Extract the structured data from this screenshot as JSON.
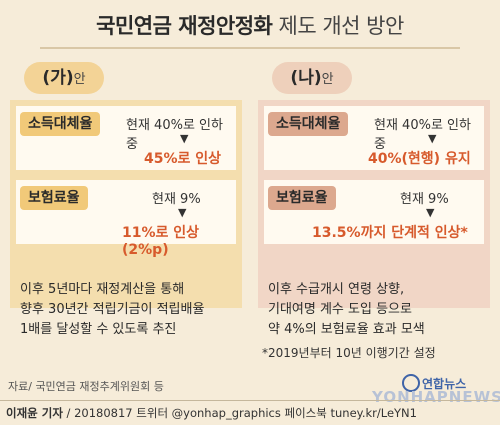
{
  "title": {
    "bold": "국민연금 재정안정화",
    "light": "제도 개선 방안"
  },
  "plans": [
    {
      "tag_big": "(가)",
      "tag_small": "안",
      "income": {
        "label": "소득대체율",
        "from": "현재 40%로 인하 중",
        "to": "45%로 인상"
      },
      "premium": {
        "label": "보험료율",
        "from": "현재 9%",
        "to": "11%로 인상(2%p)"
      },
      "notes": [
        "이후 5년마다 재정계산을 통해",
        "향후 30년간 적립기금이 적립배율",
        "1배를 달성할 수 있도록 추진"
      ]
    },
    {
      "tag_big": "(나)",
      "tag_small": "안",
      "income": {
        "label": "소득대체율",
        "from": "현재 40%로 인하 중",
        "to": "40%(현행) 유지"
      },
      "premium": {
        "label": "보험료율",
        "from": "현재 9%",
        "to": "13.5%까지 단계적 인상*"
      },
      "notes": [
        "이후 수급개시 연령 상향,",
        "기대여명 계수 도입 등으로",
        "약 4%의 보험료율 효과 모색"
      ],
      "footnote": "*2019년부터 10년 이행기간 설정"
    }
  ],
  "source": "자료/ 국민연금 재정추계위원회 등",
  "credit": {
    "author": "이재윤 기자",
    "rest": " / 20180817  트위터 @yonhap_graphics  페이스북 tuney.kr/LeYN1"
  },
  "logo": {
    "kr": "연합뉴스",
    "en": "YONHAPNEWS"
  },
  "colors": {
    "accent": "#d75a2c",
    "panel_a": "#f4deae",
    "panel_b": "#f1d6c6"
  }
}
